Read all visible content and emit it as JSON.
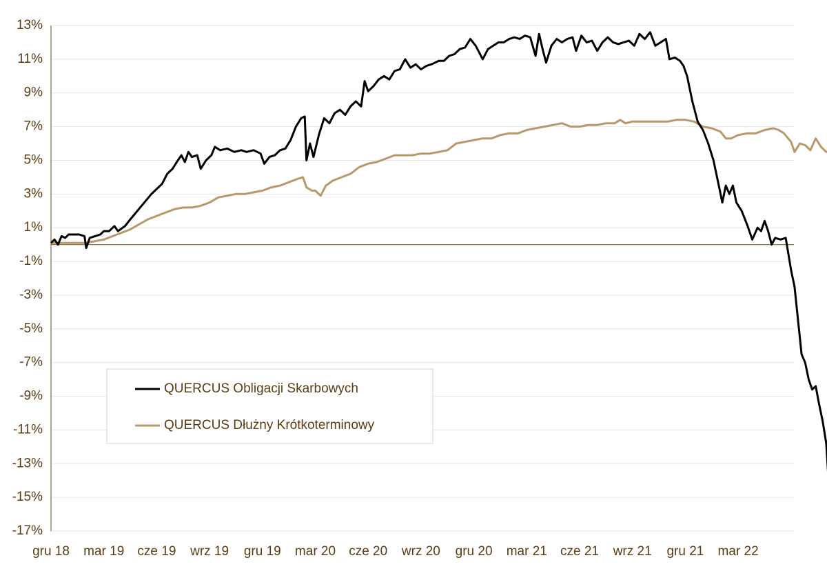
{
  "chart_data": {
    "type": "line",
    "title": "",
    "xlabel": "",
    "ylabel": "",
    "ylim": [
      -17,
      13
    ],
    "yticks": [
      "13%",
      "11%",
      "9%",
      "7%",
      "5%",
      "3%",
      "1%",
      "-1%",
      "-3%",
      "-5%",
      "-7%",
      "-9%",
      "-11%",
      "-13%",
      "-15%",
      "-17%"
    ],
    "ytick_values": [
      13,
      11,
      9,
      7,
      5,
      3,
      1,
      -1,
      -3,
      -5,
      -7,
      -9,
      -11,
      -13,
      -15,
      -17
    ],
    "xticks": [
      "gru 18",
      "mar 19",
      "cze 19",
      "wrz 19",
      "gru 19",
      "mar 20",
      "cze 20",
      "wrz 20",
      "gru 20",
      "mar 21",
      "cze 21",
      "wrz 21",
      "gru 21",
      "mar 22"
    ],
    "grid": "horizontal",
    "legend_position": "bottom-left",
    "x_unit": "months since gru 18",
    "series": [
      {
        "name": "QUERCUS Obligacji Skarbowych",
        "color": "#000000",
        "points": [
          [
            0,
            0.1
          ],
          [
            0.2,
            0.3
          ],
          [
            0.4,
            0.0
          ],
          [
            0.6,
            0.5
          ],
          [
            0.8,
            0.4
          ],
          [
            1.0,
            0.6
          ],
          [
            1.3,
            0.6
          ],
          [
            1.6,
            0.6
          ],
          [
            1.9,
            0.5
          ],
          [
            2.0,
            -0.2
          ],
          [
            2.2,
            0.4
          ],
          [
            2.5,
            0.5
          ],
          [
            2.8,
            0.6
          ],
          [
            3.0,
            0.8
          ],
          [
            3.3,
            0.8
          ],
          [
            3.6,
            1.1
          ],
          [
            3.8,
            0.8
          ],
          [
            4.2,
            1.1
          ],
          [
            4.5,
            1.5
          ],
          [
            4.9,
            2.0
          ],
          [
            5.3,
            2.5
          ],
          [
            5.7,
            3.0
          ],
          [
            6.0,
            3.3
          ],
          [
            6.3,
            3.6
          ],
          [
            6.6,
            4.2
          ],
          [
            6.9,
            4.5
          ],
          [
            7.2,
            5.0
          ],
          [
            7.4,
            5.3
          ],
          [
            7.6,
            4.9
          ],
          [
            7.8,
            5.5
          ],
          [
            8.0,
            5.2
          ],
          [
            8.3,
            5.3
          ],
          [
            8.5,
            4.5
          ],
          [
            8.8,
            5.0
          ],
          [
            9.1,
            5.3
          ],
          [
            9.3,
            5.8
          ],
          [
            9.6,
            5.6
          ],
          [
            10.0,
            5.7
          ],
          [
            10.4,
            5.5
          ],
          [
            10.8,
            5.6
          ],
          [
            11.1,
            5.5
          ],
          [
            11.5,
            5.6
          ],
          [
            11.9,
            5.4
          ],
          [
            12.1,
            4.8
          ],
          [
            12.4,
            5.2
          ],
          [
            12.7,
            5.3
          ],
          [
            13.0,
            5.6
          ],
          [
            13.3,
            5.7
          ],
          [
            13.6,
            6.2
          ],
          [
            13.9,
            7.0
          ],
          [
            14.2,
            7.5
          ],
          [
            14.4,
            7.6
          ],
          [
            14.5,
            5.0
          ],
          [
            14.7,
            6.0
          ],
          [
            14.9,
            5.2
          ],
          [
            15.2,
            6.5
          ],
          [
            15.5,
            7.5
          ],
          [
            15.8,
            7.2
          ],
          [
            16.1,
            7.8
          ],
          [
            16.4,
            8.0
          ],
          [
            16.7,
            7.7
          ],
          [
            17.0,
            8.2
          ],
          [
            17.3,
            8.5
          ],
          [
            17.6,
            8.2
          ],
          [
            17.8,
            9.7
          ],
          [
            18.0,
            9.1
          ],
          [
            18.3,
            9.4
          ],
          [
            18.6,
            9.8
          ],
          [
            18.9,
            10.0
          ],
          [
            19.2,
            9.8
          ],
          [
            19.5,
            10.3
          ],
          [
            19.8,
            10.4
          ],
          [
            20.1,
            11.0
          ],
          [
            20.4,
            10.5
          ],
          [
            20.7,
            10.7
          ],
          [
            21.0,
            10.4
          ],
          [
            21.3,
            10.6
          ],
          [
            21.6,
            10.7
          ],
          [
            22.0,
            10.9
          ],
          [
            22.3,
            10.9
          ],
          [
            22.6,
            11.2
          ],
          [
            22.9,
            11.3
          ],
          [
            23.2,
            11.6
          ],
          [
            23.5,
            11.7
          ],
          [
            23.8,
            12.2
          ],
          [
            24.1,
            11.8
          ],
          [
            24.3,
            11.4
          ],
          [
            24.5,
            11.0
          ],
          [
            24.8,
            11.6
          ],
          [
            25.1,
            11.8
          ],
          [
            25.4,
            12.0
          ],
          [
            25.7,
            12.0
          ],
          [
            26.0,
            12.2
          ],
          [
            26.3,
            12.3
          ],
          [
            26.6,
            12.2
          ],
          [
            26.9,
            12.4
          ],
          [
            27.2,
            12.3
          ],
          [
            27.5,
            11.2
          ],
          [
            27.7,
            12.5
          ],
          [
            27.9,
            11.6
          ],
          [
            28.1,
            10.8
          ],
          [
            28.4,
            11.8
          ],
          [
            28.7,
            12.2
          ],
          [
            29.0,
            12.0
          ],
          [
            29.3,
            12.2
          ],
          [
            29.6,
            12.3
          ],
          [
            29.8,
            11.5
          ],
          [
            30.1,
            12.4
          ],
          [
            30.4,
            12.0
          ],
          [
            30.7,
            12.1
          ],
          [
            31.0,
            11.5
          ],
          [
            31.3,
            12.0
          ],
          [
            31.6,
            12.3
          ],
          [
            31.9,
            12.0
          ],
          [
            32.2,
            11.9
          ],
          [
            32.5,
            12.0
          ],
          [
            32.8,
            12.1
          ],
          [
            33.1,
            11.8
          ],
          [
            33.4,
            12.5
          ],
          [
            33.7,
            12.2
          ],
          [
            34.0,
            12.6
          ],
          [
            34.3,
            11.8
          ],
          [
            34.6,
            12.0
          ],
          [
            34.9,
            12.2
          ],
          [
            35.1,
            11.0
          ],
          [
            35.4,
            11.1
          ],
          [
            35.7,
            10.9
          ],
          [
            35.9,
            10.6
          ],
          [
            36.1,
            10.0
          ],
          [
            36.4,
            8.5
          ],
          [
            36.7,
            7.3
          ],
          [
            37.0,
            6.8
          ],
          [
            37.3,
            6.0
          ],
          [
            37.6,
            5.0
          ],
          [
            37.9,
            3.5
          ],
          [
            38.1,
            2.5
          ],
          [
            38.3,
            3.5
          ],
          [
            38.5,
            3.0
          ],
          [
            38.7,
            3.5
          ],
          [
            38.9,
            2.5
          ],
          [
            39.2,
            2.0
          ],
          [
            39.5,
            1.2
          ],
          [
            39.8,
            0.3
          ],
          [
            40.1,
            1.0
          ],
          [
            40.3,
            0.8
          ],
          [
            40.5,
            1.4
          ],
          [
            40.7,
            0.8
          ],
          [
            40.9,
            0.0
          ],
          [
            41.1,
            0.4
          ],
          [
            41.4,
            0.3
          ],
          [
            41.7,
            0.4
          ],
          [
            42.0,
            -1.5
          ],
          [
            42.2,
            -2.5
          ],
          [
            42.4,
            -4.5
          ],
          [
            42.6,
            -6.5
          ],
          [
            42.8,
            -7.0
          ],
          [
            43.0,
            -8.0
          ],
          [
            43.2,
            -8.6
          ],
          [
            43.4,
            -8.4
          ],
          [
            43.6,
            -9.5
          ],
          [
            43.8,
            -10.5
          ],
          [
            44.0,
            -11.8
          ],
          [
            44.1,
            -13.5
          ],
          [
            44.3,
            -14.0
          ],
          [
            44.5,
            -13.2
          ],
          [
            44.7,
            -14.2
          ],
          [
            44.9,
            -13.8
          ],
          [
            45.1,
            -14.3
          ]
        ]
      },
      {
        "name": "QUERCUS Dłużny Krótkoterminowy",
        "color": "#b8986a",
        "points": [
          [
            0,
            0.1
          ],
          [
            1.0,
            0.1
          ],
          [
            2.0,
            0.1
          ],
          [
            2.5,
            0.2
          ],
          [
            3.0,
            0.3
          ],
          [
            3.5,
            0.5
          ],
          [
            4.0,
            0.7
          ],
          [
            4.5,
            0.9
          ],
          [
            5.0,
            1.2
          ],
          [
            5.5,
            1.5
          ],
          [
            6.0,
            1.7
          ],
          [
            6.5,
            1.9
          ],
          [
            7.0,
            2.1
          ],
          [
            7.5,
            2.2
          ],
          [
            8.0,
            2.2
          ],
          [
            8.5,
            2.3
          ],
          [
            9.0,
            2.5
          ],
          [
            9.5,
            2.8
          ],
          [
            10.0,
            2.9
          ],
          [
            10.5,
            3.0
          ],
          [
            11.0,
            3.0
          ],
          [
            11.5,
            3.1
          ],
          [
            12.0,
            3.2
          ],
          [
            12.5,
            3.4
          ],
          [
            13.0,
            3.5
          ],
          [
            13.5,
            3.7
          ],
          [
            14.0,
            3.9
          ],
          [
            14.3,
            4.0
          ],
          [
            14.5,
            3.4
          ],
          [
            14.8,
            3.2
          ],
          [
            15.0,
            3.2
          ],
          [
            15.3,
            2.9
          ],
          [
            15.6,
            3.5
          ],
          [
            16.0,
            3.8
          ],
          [
            16.5,
            4.0
          ],
          [
            17.0,
            4.2
          ],
          [
            17.5,
            4.6
          ],
          [
            18.0,
            4.8
          ],
          [
            18.5,
            4.9
          ],
          [
            19.0,
            5.1
          ],
          [
            19.5,
            5.3
          ],
          [
            20.0,
            5.3
          ],
          [
            20.5,
            5.3
          ],
          [
            21.0,
            5.4
          ],
          [
            21.5,
            5.4
          ],
          [
            22.0,
            5.5
          ],
          [
            22.5,
            5.6
          ],
          [
            23.0,
            6.0
          ],
          [
            23.5,
            6.1
          ],
          [
            24.0,
            6.2
          ],
          [
            24.5,
            6.3
          ],
          [
            25.0,
            6.3
          ],
          [
            25.5,
            6.5
          ],
          [
            26.0,
            6.6
          ],
          [
            26.5,
            6.6
          ],
          [
            27.0,
            6.8
          ],
          [
            27.5,
            6.9
          ],
          [
            28.0,
            7.0
          ],
          [
            28.5,
            7.1
          ],
          [
            29.0,
            7.2
          ],
          [
            29.5,
            7.0
          ],
          [
            30.0,
            7.0
          ],
          [
            30.5,
            7.1
          ],
          [
            31.0,
            7.1
          ],
          [
            31.5,
            7.2
          ],
          [
            32.0,
            7.2
          ],
          [
            32.3,
            7.4
          ],
          [
            32.6,
            7.2
          ],
          [
            33.0,
            7.3
          ],
          [
            33.5,
            7.3
          ],
          [
            34.0,
            7.3
          ],
          [
            34.5,
            7.3
          ],
          [
            35.0,
            7.3
          ],
          [
            35.5,
            7.4
          ],
          [
            36.0,
            7.4
          ],
          [
            36.5,
            7.3
          ],
          [
            37.0,
            7.0
          ],
          [
            37.5,
            6.9
          ],
          [
            38.0,
            6.7
          ],
          [
            38.3,
            6.3
          ],
          [
            38.6,
            6.3
          ],
          [
            39.0,
            6.5
          ],
          [
            39.5,
            6.6
          ],
          [
            40.0,
            6.6
          ],
          [
            40.5,
            6.8
          ],
          [
            41.0,
            6.9
          ],
          [
            41.3,
            6.8
          ],
          [
            41.6,
            6.6
          ],
          [
            42.0,
            6.1
          ],
          [
            42.2,
            5.5
          ],
          [
            42.5,
            6.0
          ],
          [
            42.8,
            5.9
          ],
          [
            43.1,
            5.6
          ],
          [
            43.4,
            6.3
          ],
          [
            43.7,
            5.8
          ],
          [
            44.0,
            5.5
          ],
          [
            44.3,
            5.6
          ],
          [
            44.6,
            5.4
          ],
          [
            44.9,
            5.3
          ]
        ]
      }
    ]
  }
}
